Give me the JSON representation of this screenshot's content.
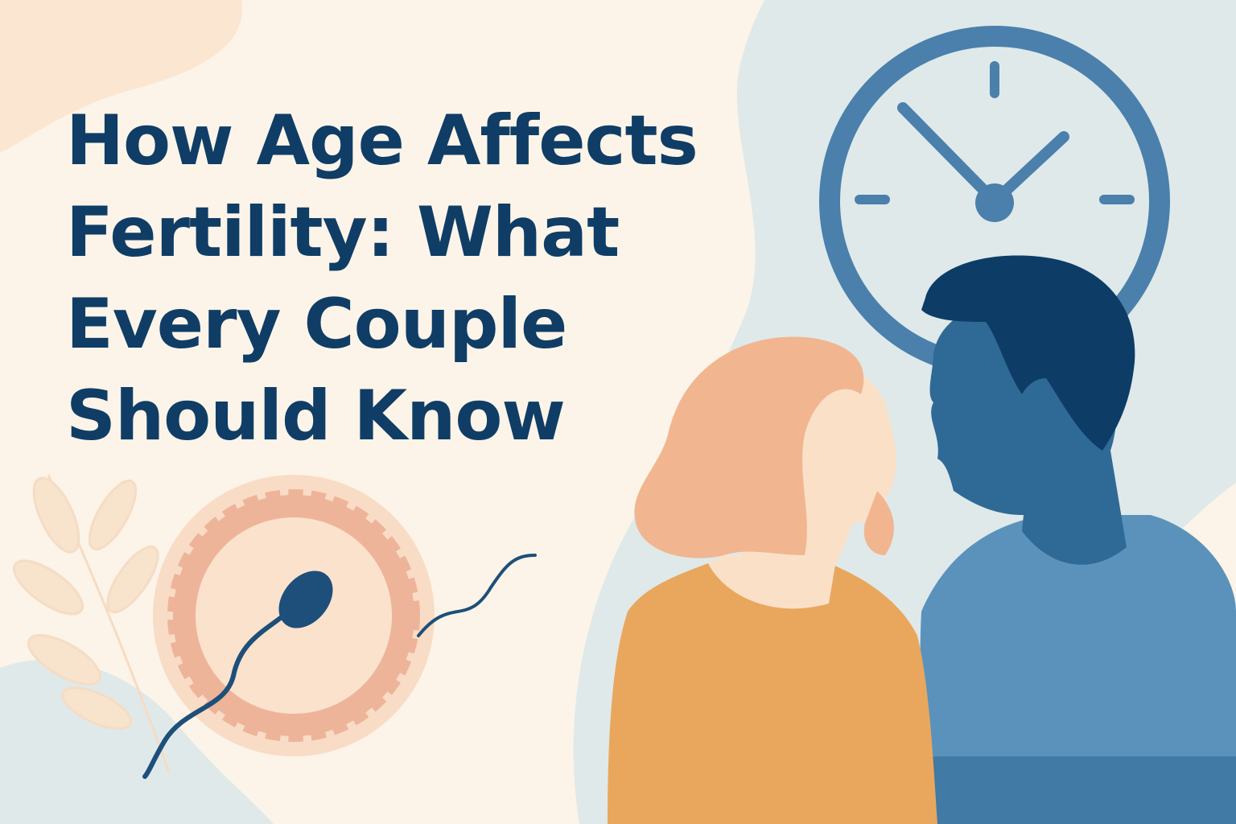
{
  "title": {
    "lines": [
      "How Age Affects",
      "Fertility: What",
      "Every Couple",
      "Should Know"
    ]
  },
  "colors": {
    "background": "#fcf4e8",
    "title": "#0f3d66",
    "blob_blue": "#dfe9ea",
    "clock": "#4a80ab",
    "woman_hair": "#f1b690",
    "woman_skin": "#fbe0c8",
    "woman_shirt": "#e9a75d",
    "man_hair": "#0d3d66",
    "man_skin": "#2f6a96",
    "man_shirt": "#5b92bb",
    "egg": "#f2c1a6",
    "sperm": "#1d4f7a"
  },
  "icons": [
    "clock-icon",
    "egg-cell-icon",
    "sperm-icon",
    "leaf-branch-icon",
    "couple-illustration"
  ]
}
